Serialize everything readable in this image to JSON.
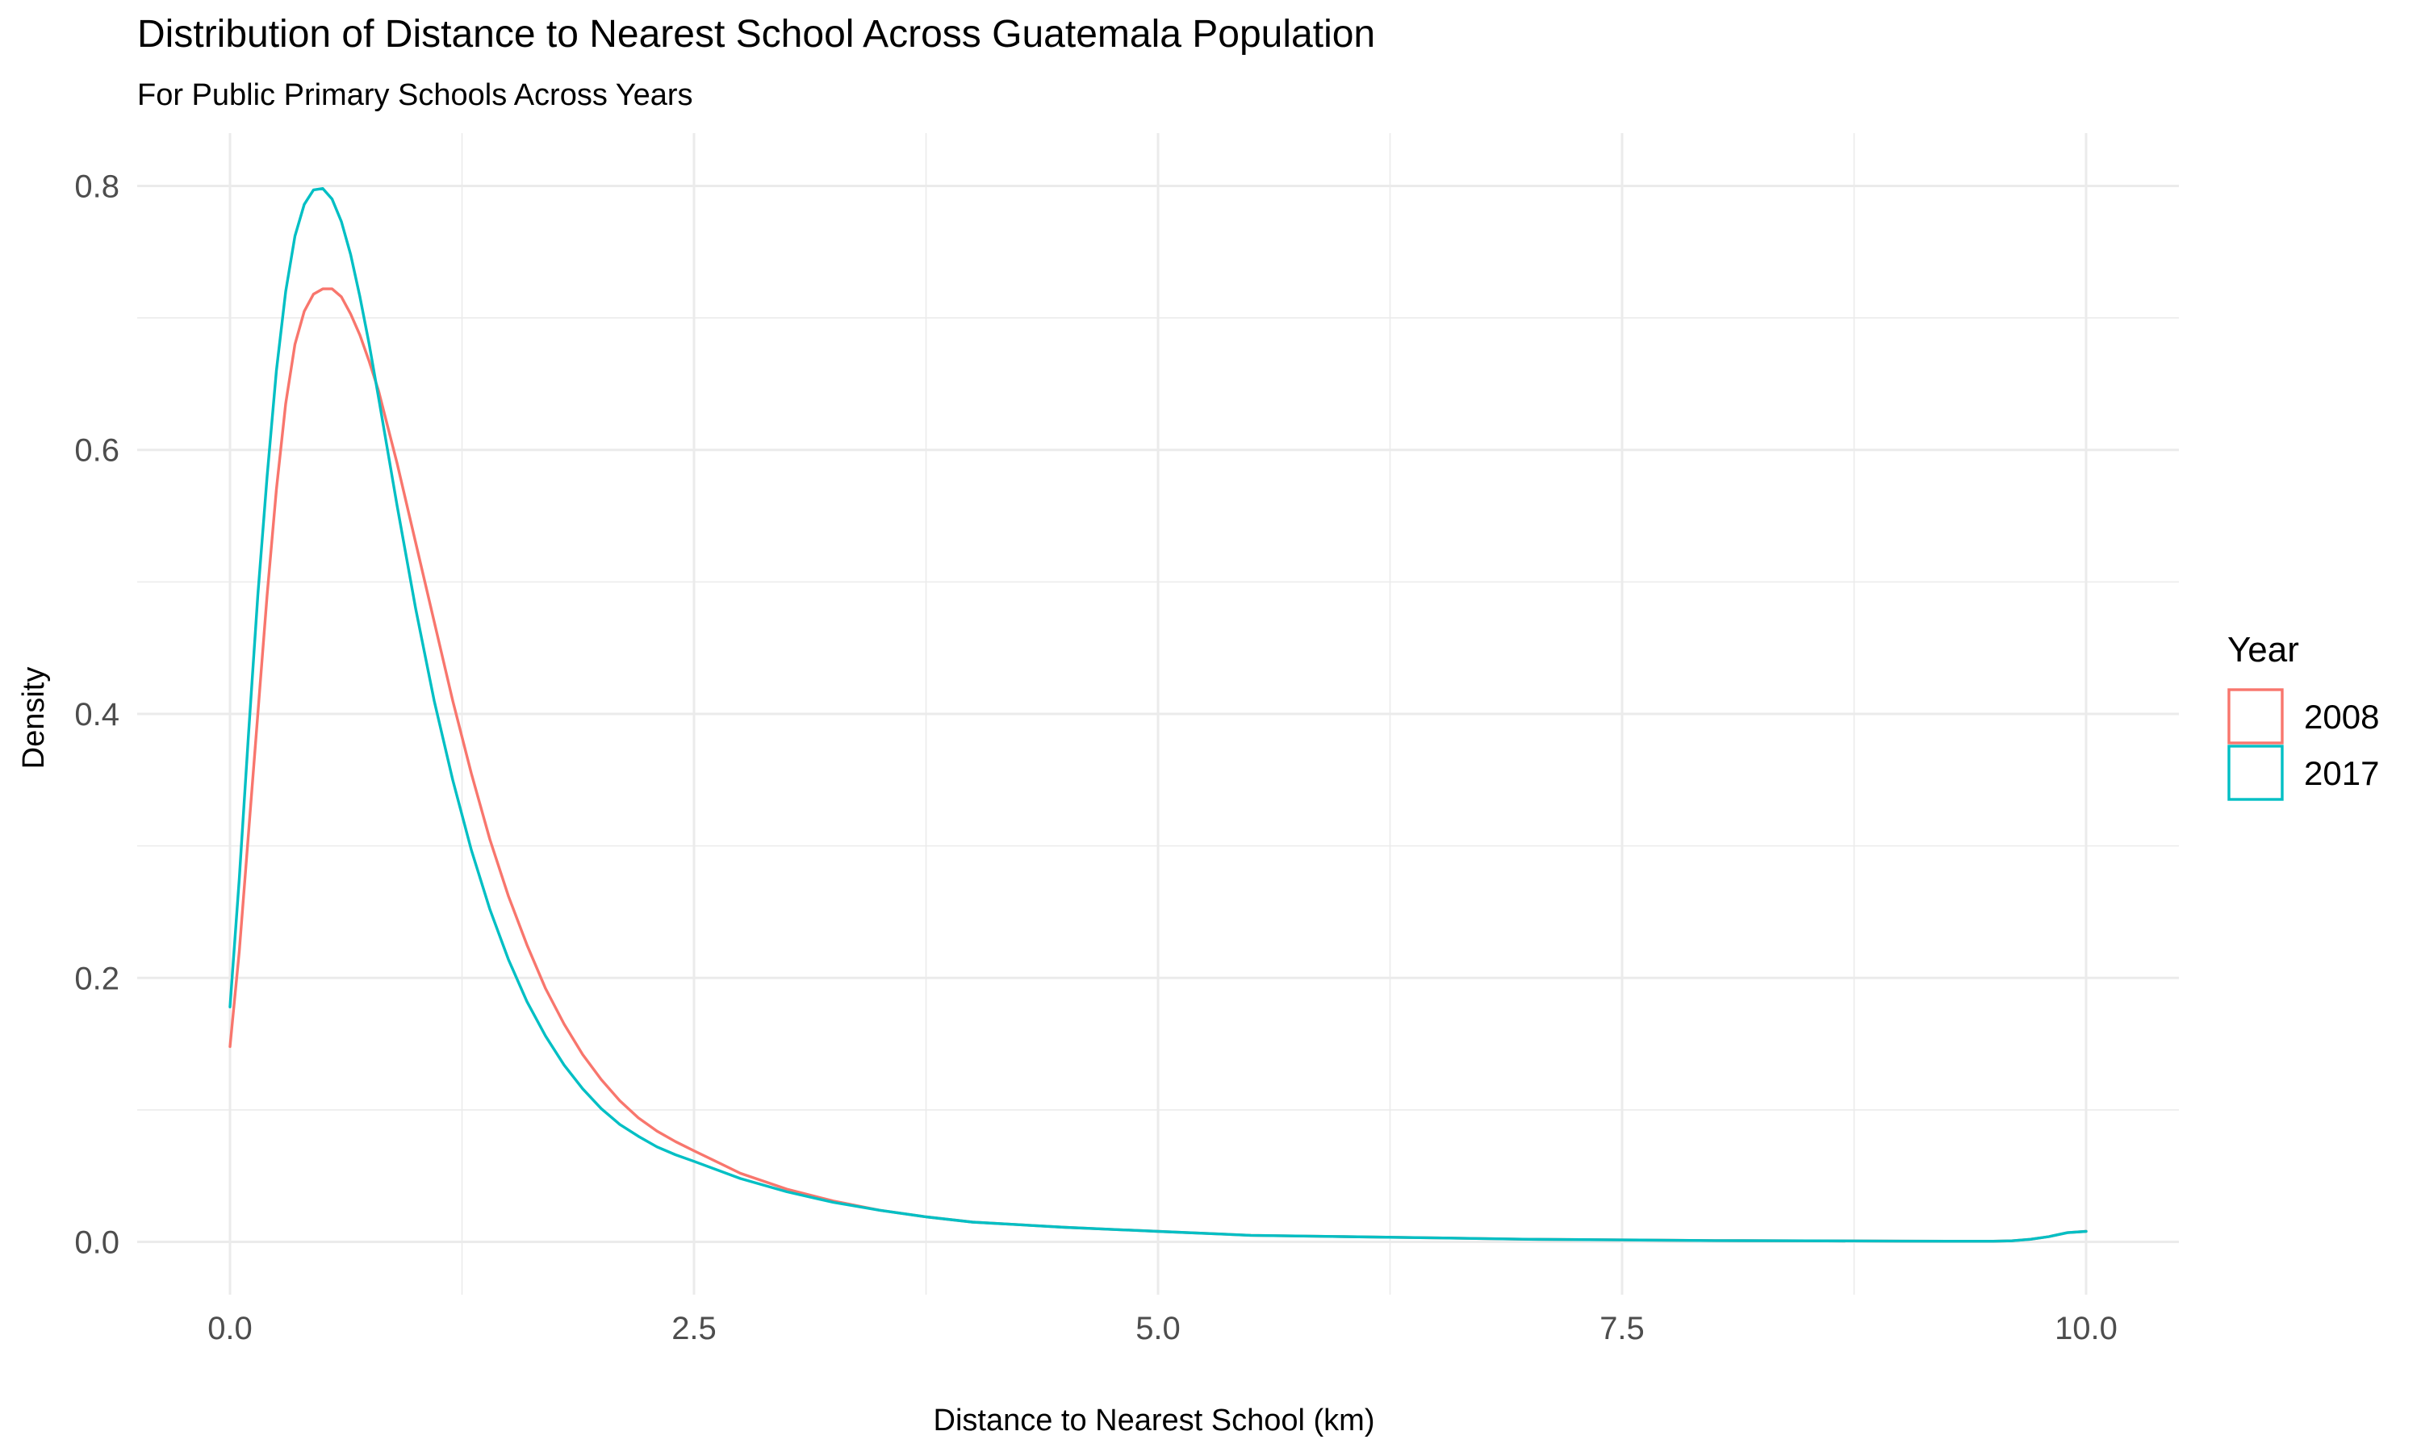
{
  "chart_data": {
    "type": "line",
    "title": "Distribution of Distance to Nearest School Across Guatemala Population",
    "subtitle": "For Public Primary Schools Across Years",
    "xlabel": "Distance to Nearest School (km)",
    "ylabel": "Density",
    "xlim": [
      -0.5,
      10.5
    ],
    "ylim": [
      -0.04,
      0.84
    ],
    "x_ticks": [
      0.0,
      2.5,
      5.0,
      7.5,
      10.0
    ],
    "x_tick_labels": [
      "0.0",
      "2.5",
      "5.0",
      "7.5",
      "10.0"
    ],
    "y_ticks": [
      0.0,
      0.2,
      0.4,
      0.6,
      0.8
    ],
    "y_tick_labels": [
      "0.0",
      "0.2",
      "0.4",
      "0.6",
      "0.8"
    ],
    "x_minor": [
      1.25,
      3.75,
      6.25,
      8.75
    ],
    "y_minor": [
      0.1,
      0.3,
      0.5,
      0.7
    ],
    "grid": true,
    "legend": {
      "title": "Year",
      "position": "right"
    },
    "series": [
      {
        "name": "2008",
        "color": "#F8766D",
        "x": [
          0.0,
          0.05,
          0.1,
          0.15,
          0.2,
          0.25,
          0.3,
          0.35,
          0.4,
          0.45,
          0.5,
          0.55,
          0.6,
          0.65,
          0.7,
          0.75,
          0.8,
          0.9,
          1.0,
          1.1,
          1.2,
          1.3,
          1.4,
          1.5,
          1.6,
          1.7,
          1.8,
          1.9,
          2.0,
          2.1,
          2.2,
          2.3,
          2.4,
          2.5,
          2.75,
          3.0,
          3.25,
          3.5,
          3.75,
          4.0,
          4.5,
          5.0,
          5.5,
          6.0,
          6.5,
          7.0,
          7.5,
          8.0,
          8.5,
          9.0,
          9.5,
          9.6,
          9.7,
          9.8,
          9.9,
          10.0
        ],
        "y": [
          0.148,
          0.22,
          0.31,
          0.4,
          0.49,
          0.57,
          0.635,
          0.68,
          0.705,
          0.718,
          0.722,
          0.722,
          0.716,
          0.703,
          0.687,
          0.667,
          0.645,
          0.59,
          0.53,
          0.47,
          0.41,
          0.355,
          0.305,
          0.262,
          0.225,
          0.192,
          0.165,
          0.142,
          0.123,
          0.107,
          0.094,
          0.084,
          0.076,
          0.069,
          0.052,
          0.04,
          0.031,
          0.024,
          0.019,
          0.015,
          0.011,
          0.008,
          0.005,
          0.004,
          0.003,
          0.002,
          0.0015,
          0.001,
          0.0008,
          0.0006,
          0.0005,
          0.0008,
          0.002,
          0.004,
          0.007,
          0.008
        ]
      },
      {
        "name": "2017",
        "color": "#00BFC4",
        "x": [
          0.0,
          0.05,
          0.1,
          0.15,
          0.2,
          0.25,
          0.3,
          0.35,
          0.4,
          0.45,
          0.5,
          0.55,
          0.6,
          0.65,
          0.7,
          0.75,
          0.8,
          0.9,
          1.0,
          1.1,
          1.2,
          1.3,
          1.4,
          1.5,
          1.6,
          1.7,
          1.8,
          1.9,
          2.0,
          2.1,
          2.2,
          2.3,
          2.4,
          2.5,
          2.75,
          3.0,
          3.25,
          3.5,
          3.75,
          4.0,
          4.5,
          5.0,
          5.5,
          6.0,
          6.5,
          7.0,
          7.5,
          8.0,
          8.5,
          9.0,
          9.5,
          9.6,
          9.7,
          9.8,
          9.9,
          10.0
        ],
        "y": [
          0.178,
          0.275,
          0.385,
          0.49,
          0.58,
          0.66,
          0.72,
          0.762,
          0.786,
          0.797,
          0.798,
          0.79,
          0.773,
          0.748,
          0.716,
          0.68,
          0.64,
          0.558,
          0.48,
          0.41,
          0.35,
          0.297,
          0.252,
          0.214,
          0.182,
          0.156,
          0.134,
          0.116,
          0.101,
          0.089,
          0.08,
          0.072,
          0.066,
          0.061,
          0.048,
          0.038,
          0.03,
          0.024,
          0.019,
          0.015,
          0.011,
          0.008,
          0.005,
          0.004,
          0.003,
          0.002,
          0.0015,
          0.001,
          0.0008,
          0.0006,
          0.0005,
          0.0008,
          0.002,
          0.004,
          0.007,
          0.008
        ]
      }
    ]
  }
}
